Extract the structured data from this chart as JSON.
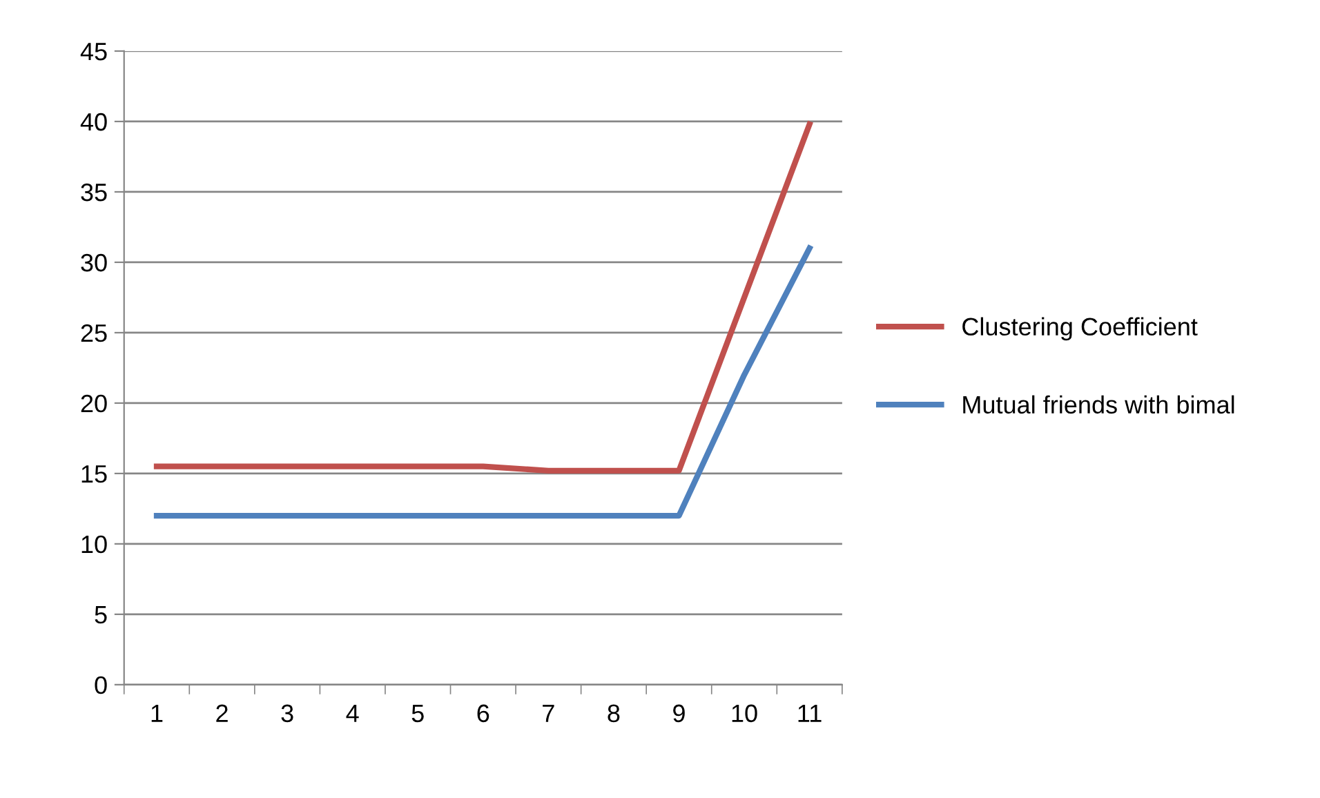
{
  "chart_data": {
    "type": "line",
    "categories": [
      "1",
      "2",
      "3",
      "4",
      "5",
      "6",
      "7",
      "8",
      "9",
      "10",
      "11"
    ],
    "series": [
      {
        "name": "Clustering Coefficient",
        "color": "#c0504d",
        "values": [
          15.5,
          15.5,
          15.5,
          15.5,
          15.5,
          15.5,
          15.2,
          15.2,
          15.2,
          27.5,
          39.8
        ]
      },
      {
        "name": "Mutual friends with bimal",
        "color": "#4f81bd",
        "values": [
          12,
          12,
          12,
          12,
          12,
          12,
          12,
          12,
          12,
          22,
          31
        ]
      }
    ],
    "ylim": [
      0,
      45
    ],
    "yticks": [
      0,
      5,
      10,
      15,
      20,
      25,
      30,
      35,
      40,
      45
    ],
    "grid": "y",
    "legend": "right",
    "marker": "none",
    "line_style": "solid"
  }
}
